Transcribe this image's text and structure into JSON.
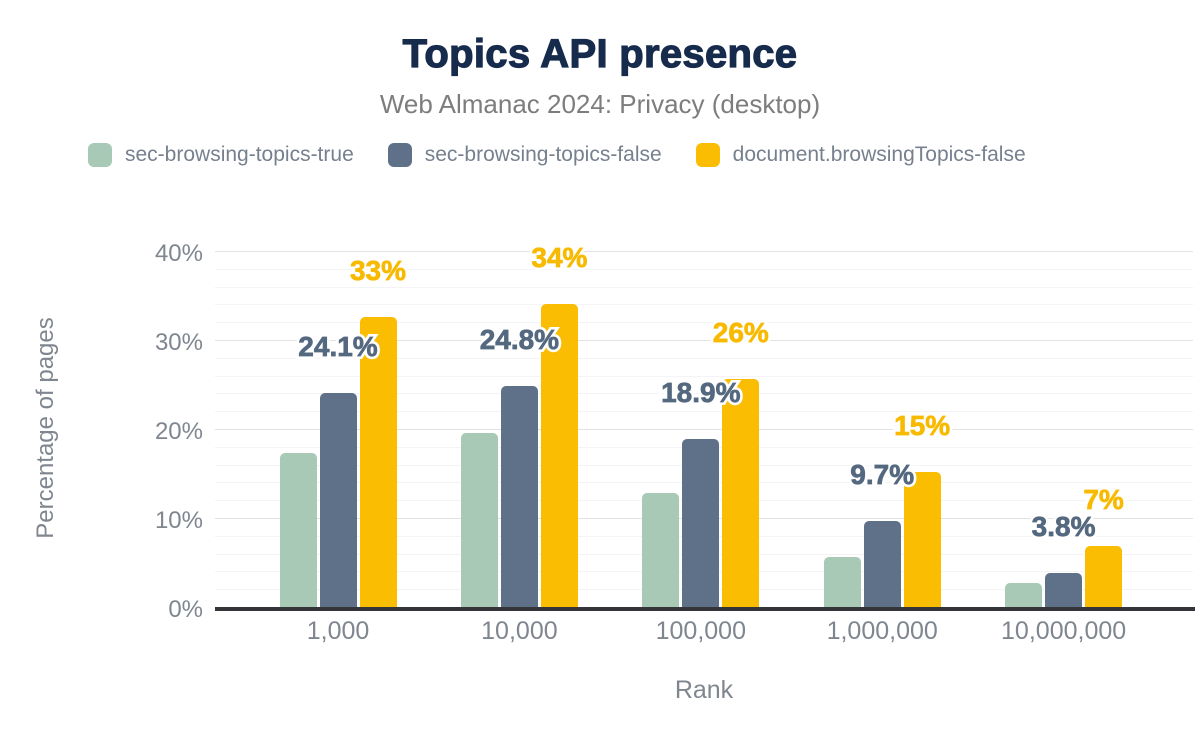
{
  "title": "Topics API presence",
  "subtitle": "Web Almanac 2024: Privacy (desktop)",
  "legend": [
    {
      "label": "sec-browsing-topics-true",
      "color": "#a8c9b6"
    },
    {
      "label": "sec-browsing-topics-false",
      "color": "#5f7089"
    },
    {
      "label": "document.browsingTopics-false",
      "color": "#fabd02"
    }
  ],
  "colors": {
    "title": "#172b4d",
    "subtitle": "#7d7d7d",
    "legend_text": "#76808e",
    "axis_text": "#7f868f",
    "baseline": "#333538",
    "grid_major": "#e2e2e5",
    "grid_minor": "#f4f4f6",
    "series_green": "#a8c9b6",
    "series_blue": "#5f7089",
    "series_yellow": "#fabd02",
    "label_blue": "#54687f",
    "label_yellow": "#f8ba00"
  },
  "chart_data": {
    "type": "bar",
    "title": "Topics API presence",
    "subtitle": "Web Almanac 2024: Privacy (desktop)",
    "xlabel": "Rank",
    "ylabel": "Percentage of pages",
    "categories": [
      "1,000",
      "10,000",
      "100,000",
      "1,000,000",
      "10,000,000"
    ],
    "series": [
      {
        "name": "sec-browsing-topics-true",
        "color": "#a8c9b6",
        "values": [
          17.3,
          19.6,
          12.8,
          5.6,
          2.7
        ],
        "data_labels": [
          "",
          "",
          "",
          "",
          ""
        ],
        "label_color": "#54687f"
      },
      {
        "name": "sec-browsing-topics-false",
        "color": "#5f7089",
        "values": [
          24.1,
          24.8,
          18.9,
          9.7,
          3.8
        ],
        "data_labels": [
          "24.1%",
          "24.8%",
          "18.9%",
          "9.7%",
          "3.8%"
        ],
        "label_color": "#54687f"
      },
      {
        "name": "document.browsingTopics-false",
        "color": "#fabd02",
        "values": [
          32.6,
          34.1,
          25.6,
          15.2,
          6.9
        ],
        "data_labels": [
          "33%",
          "34%",
          "26%",
          "15%",
          "7%"
        ],
        "label_color": "#f8ba00"
      }
    ],
    "ylim": [
      0,
      40
    ],
    "y_tick_values": [
      0,
      10,
      20,
      30,
      40
    ],
    "y_tick_labels": [
      "0%",
      "10%",
      "20%",
      "30%",
      "40%"
    ],
    "grid": {
      "major_step": 10,
      "minor_step": 2,
      "visible": true
    },
    "legend_position": "top-left",
    "data_label_note": "blue and yellow series show data labels with white outline above bars"
  }
}
